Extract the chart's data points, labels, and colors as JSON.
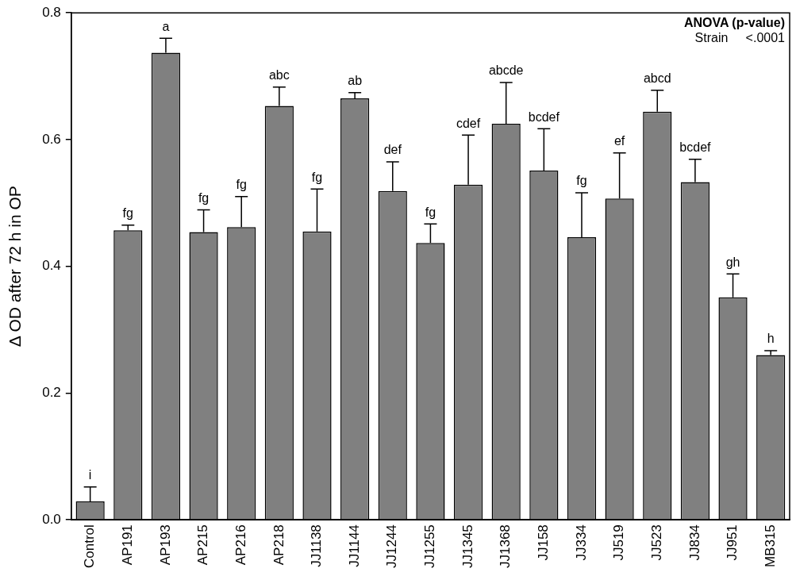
{
  "chart_data": {
    "type": "bar",
    "ylabel": "Δ OD after 72 h in OP",
    "categories": [
      "Control",
      "AP191",
      "AP193",
      "AP215",
      "AP216",
      "AP218",
      "JJ1138",
      "JJ1144",
      "JJ1244",
      "JJ1255",
      "JJ1345",
      "JJ1368",
      "JJ158",
      "JJ334",
      "JJ519",
      "JJ523",
      "JJ834",
      "JJ951",
      "MB315"
    ],
    "values": [
      0.029,
      0.457,
      0.737,
      0.454,
      0.462,
      0.653,
      0.455,
      0.665,
      0.519,
      0.437,
      0.529,
      0.625,
      0.551,
      0.446,
      0.507,
      0.644,
      0.533,
      0.351,
      0.26
    ],
    "errors": [
      [
        0.029,
        0.052
      ],
      [
        0.457,
        0.465
      ],
      [
        0.737,
        0.76
      ],
      [
        0.454,
        0.489
      ],
      [
        0.462,
        0.51
      ],
      [
        0.653,
        0.683
      ],
      [
        0.455,
        0.522
      ],
      [
        0.665,
        0.674
      ],
      [
        0.519,
        0.565
      ],
      [
        0.437,
        0.467
      ],
      [
        0.529,
        0.607
      ],
      [
        0.625,
        0.69
      ],
      [
        0.551,
        0.617
      ],
      [
        0.446,
        0.516
      ],
      [
        0.507,
        0.579
      ],
      [
        0.644,
        0.678
      ],
      [
        0.533,
        0.569
      ],
      [
        0.351,
        0.388
      ],
      [
        0.26,
        0.267
      ]
    ],
    "color": "#808080",
    "ylim": [
      0,
      0.8
    ],
    "yticks": [
      {
        "value": 0,
        "label": "0.0"
      },
      {
        "value": 0.2,
        "label": "0.2"
      },
      {
        "value": 0.4,
        "label": "0.4"
      },
      {
        "value": 0.6,
        "label": "0.6"
      },
      {
        "value": 0.8,
        "label": "0.8"
      }
    ],
    "grid": false,
    "legend": false,
    "annotations": [
      "ANOVA (p-value)",
      "Strain     <.0001",
      {
        "text": "i",
        "x": "Control",
        "y": 0.052
      },
      {
        "text": "fg",
        "x": "AP191",
        "y": 0.465
      },
      {
        "text": "a",
        "x": "AP193",
        "y": 0.76
      },
      {
        "text": "fg",
        "x": "AP215",
        "y": 0.489
      },
      {
        "text": "fg",
        "x": "AP216",
        "y": 0.51
      },
      {
        "text": "abc",
        "x": "AP218",
        "y": 0.683
      },
      {
        "text": "fg",
        "x": "JJ1138",
        "y": 0.522
      },
      {
        "text": "ab",
        "x": "JJ1144",
        "y": 0.674
      },
      {
        "text": "def",
        "x": "JJ1244",
        "y": 0.565
      },
      {
        "text": "fg",
        "x": "JJ1255",
        "y": 0.467
      },
      {
        "text": "cdef",
        "x": "JJ1345",
        "y": 0.607
      },
      {
        "text": "abcde",
        "x": "JJ1368",
        "y": 0.69
      },
      {
        "text": "bcdef",
        "x": "JJ158",
        "y": 0.617
      },
      {
        "text": "fg",
        "x": "JJ334",
        "y": 0.516
      },
      {
        "text": "ef",
        "x": "JJ519",
        "y": 0.579
      },
      {
        "text": "abcd",
        "x": "JJ523",
        "y": 0.678
      },
      {
        "text": "bcdef",
        "x": "JJ834",
        "y": 0.569
      },
      {
        "text": "gh",
        "x": "JJ951",
        "y": 0.388
      },
      {
        "text": "h",
        "x": "MB315",
        "y": 0.267
      }
    ]
  }
}
